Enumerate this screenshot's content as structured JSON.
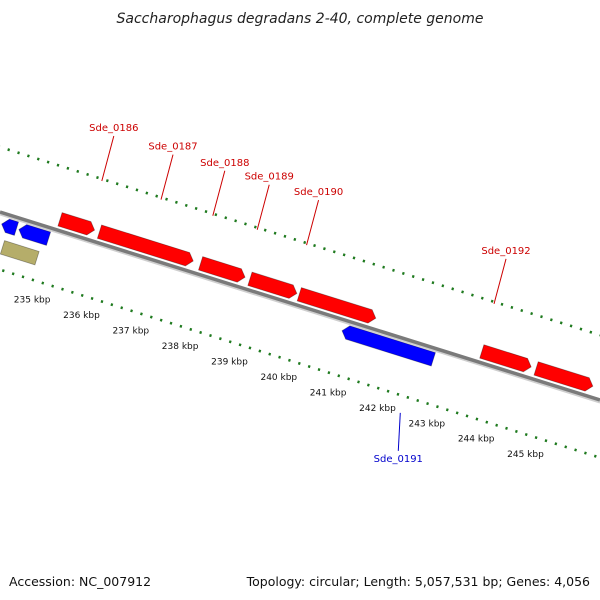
{
  "title": "Saccharophagus degradans 2-40, complete genome",
  "footer": {
    "accession": "Accession: NC_007912",
    "summary": "Topology: circular; Length: 5,057,531 bp; Genes: 4,056"
  },
  "colors": {
    "background": "#ffffff",
    "backbone": "#7a7a7a",
    "tick": "#1f7a1f",
    "forward_gene": "#ff0000",
    "reverse_gene": "#0000ff",
    "rna_feature": "#b5ad6a",
    "forward_label": "#cc0000",
    "reverse_label": "#0000cc"
  },
  "axis": {
    "unit": "kbp",
    "labels": [
      {
        "kbp": 235,
        "text": "235 kbp"
      },
      {
        "kbp": 236,
        "text": "236 kbp"
      },
      {
        "kbp": 237,
        "text": "237 kbp"
      },
      {
        "kbp": 238,
        "text": "238 kbp"
      },
      {
        "kbp": 239,
        "text": "239 kbp"
      },
      {
        "kbp": 240,
        "text": "240 kbp"
      },
      {
        "kbp": 241,
        "text": "241 kbp"
      },
      {
        "kbp": 242,
        "text": "242 kbp"
      },
      {
        "kbp": 243,
        "text": "243 kbp"
      },
      {
        "kbp": 244,
        "text": "244 kbp"
      },
      {
        "kbp": 245,
        "text": "245 kbp"
      }
    ]
  },
  "genes": [
    {
      "start_kbp": 234.0,
      "end_kbp": 234.3,
      "strand": "reverse",
      "color": "#0000ff"
    },
    {
      "start_kbp": 234.35,
      "end_kbp": 234.95,
      "strand": "reverse",
      "color": "#0000ff"
    },
    {
      "start_kbp": 234.15,
      "end_kbp": 234.85,
      "strand": "none",
      "color": "#b5ad6a"
    },
    {
      "start_kbp": 235.05,
      "end_kbp": 235.75,
      "strand": "forward",
      "color": "#ff0000",
      "name": "Sde_0186"
    },
    {
      "start_kbp": 235.85,
      "end_kbp": 237.75,
      "strand": "forward",
      "color": "#ff0000",
      "name": "Sde_0187"
    },
    {
      "start_kbp": 237.9,
      "end_kbp": 238.8,
      "strand": "forward",
      "color": "#ff0000",
      "name": "Sde_0188"
    },
    {
      "start_kbp": 238.9,
      "end_kbp": 239.85,
      "strand": "forward",
      "color": "#ff0000",
      "name": "Sde_0189"
    },
    {
      "start_kbp": 239.9,
      "end_kbp": 241.45,
      "strand": "forward",
      "color": "#ff0000",
      "name": "Sde_0190"
    },
    {
      "start_kbp": 240.9,
      "end_kbp": 242.75,
      "strand": "reverse",
      "color": "#0000ff",
      "name": "Sde_0191"
    },
    {
      "start_kbp": 243.6,
      "end_kbp": 244.6,
      "strand": "forward",
      "color": "#ff0000",
      "name": "Sde_0192"
    },
    {
      "start_kbp": 244.7,
      "end_kbp": 245.85,
      "strand": "forward",
      "color": "#ff0000"
    }
  ]
}
